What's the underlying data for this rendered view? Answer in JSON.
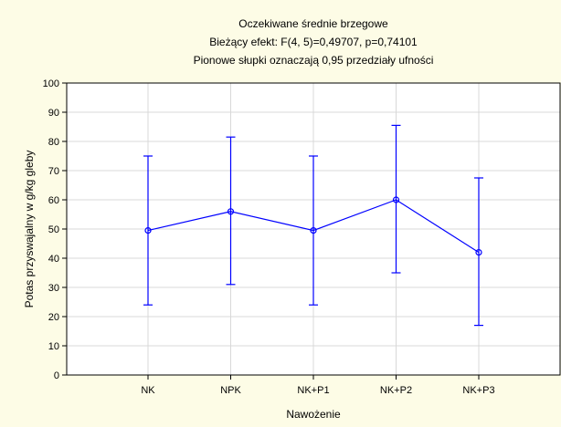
{
  "chart_data": {
    "type": "line",
    "title": "Oczekiwane średnie brzegowe",
    "subtitle_lines": [
      "Bieżący efekt: F(4, 5)=0,49707, p=0,74101",
      "Pionowe słupki oznaczają 0,95 przedziały ufności"
    ],
    "xlabel": "Nawożenie",
    "ylabel": "Potas przyswajalny w g/kg gleby",
    "categories": [
      "NK",
      "NPK",
      "NK+P1",
      "NK+P2",
      "NK+P3"
    ],
    "y_ticks": [
      "0",
      "10",
      "20",
      "30",
      "40",
      "50",
      "60",
      "70",
      "80",
      "90",
      "100"
    ],
    "ylim": [
      0,
      100
    ],
    "grid": true,
    "series": [
      {
        "values": [
          49.5,
          56.0,
          49.5,
          60.0,
          42.0
        ],
        "ci_lower": [
          24.0,
          31.0,
          24.0,
          35.0,
          17.0
        ],
        "ci_upper": [
          75.0,
          81.5,
          75.0,
          85.5,
          67.5
        ],
        "color": "#0000ff"
      }
    ]
  }
}
